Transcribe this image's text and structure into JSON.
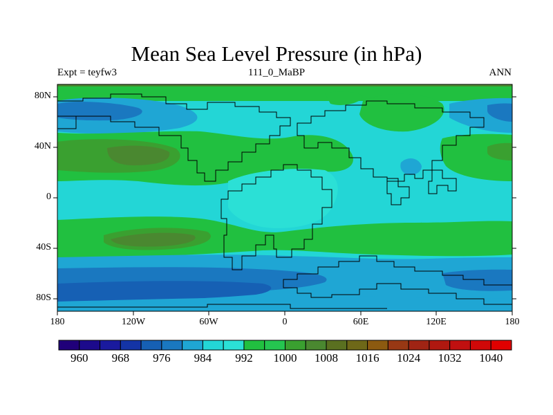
{
  "title": "Mean Sea Level Pressure (in hPa)",
  "subtitle_left": "Expt = teyfw3",
  "subtitle_center": "111_0_MaBP",
  "subtitle_right": "ANN",
  "lat_ticks": [
    "80N",
    "40N",
    "0",
    "40S",
    "80S"
  ],
  "lon_ticks": [
    "180",
    "120W",
    "60W",
    "0",
    "60E",
    "120E",
    "180"
  ],
  "colorbar": {
    "labels": [
      "960",
      "968",
      "976",
      "984",
      "992",
      "1000",
      "1008",
      "1016",
      "1024",
      "1032",
      "1040"
    ],
    "colors": [
      "#20007a",
      "#1c0a8c",
      "#1a1a9e",
      "#1434a6",
      "#1660b4",
      "#1a78c0",
      "#1fa6d4",
      "#23d6d6",
      "#2be0d6",
      "#21c040",
      "#25c550",
      "#3aa030",
      "#4a8830",
      "#5a7020",
      "#6e6818",
      "#8c5a10",
      "#983814",
      "#a02414",
      "#b01810",
      "#c01010",
      "#d00808",
      "#e00000"
    ]
  },
  "chart_data": {
    "type": "map",
    "variable": "Mean Sea Level Pressure",
    "units": "hPa",
    "projection": "cylindrical equidistant",
    "lon_range": [
      -180,
      180
    ],
    "lat_range": [
      -90,
      90
    ],
    "contour_levels": [
      960,
      1040
    ],
    "level_labels": [
      960,
      968,
      976,
      984,
      992,
      1000,
      1008,
      1016,
      1024,
      1032,
      1040
    ]
  }
}
